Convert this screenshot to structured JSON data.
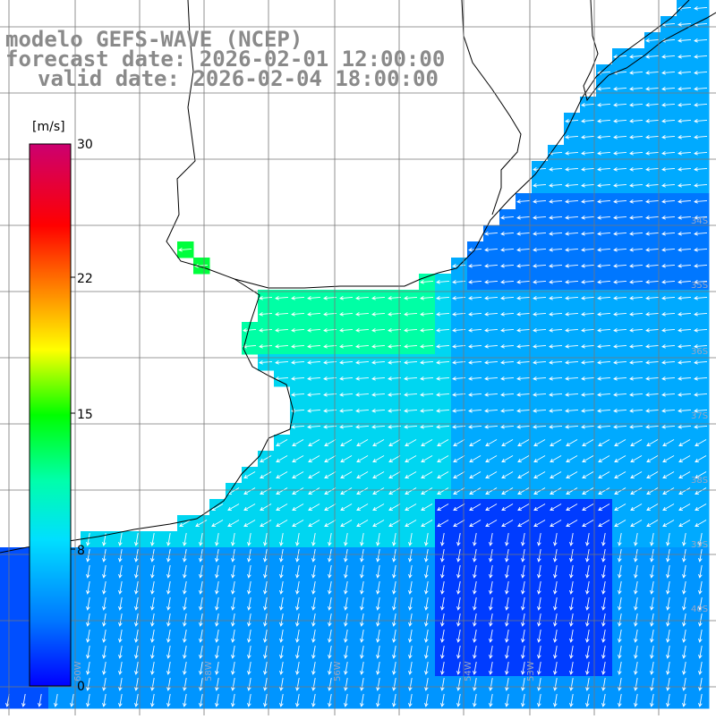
{
  "title": {
    "line1": "modelo GEFS-WAVE (NCEP)",
    "line2": "forecast date: 2026-02-01 12:00:00",
    "line3": "valid date: 2026-02-04 18:00:00"
  },
  "colorbar": {
    "unit": "[m/s]",
    "ticks": [
      "30",
      "22",
      "15",
      "8",
      "0"
    ],
    "colors": [
      "#0000ff",
      "#0077ff",
      "#00dfff",
      "#00ff55",
      "#ffff00",
      "#ff7b00",
      "#ff0000",
      "#cc0070"
    ],
    "range": [
      0,
      30
    ]
  },
  "map": {
    "lat_labels": [
      "34S",
      "35S",
      "36S",
      "37S",
      "38S",
      "39S",
      "40S"
    ],
    "lon_labels": [
      "60W",
      "58W",
      "56W",
      "54W",
      "53W"
    ],
    "land_color": "#ffffff",
    "grid_color": "#777777",
    "arrow_color": "#ffffff"
  }
}
